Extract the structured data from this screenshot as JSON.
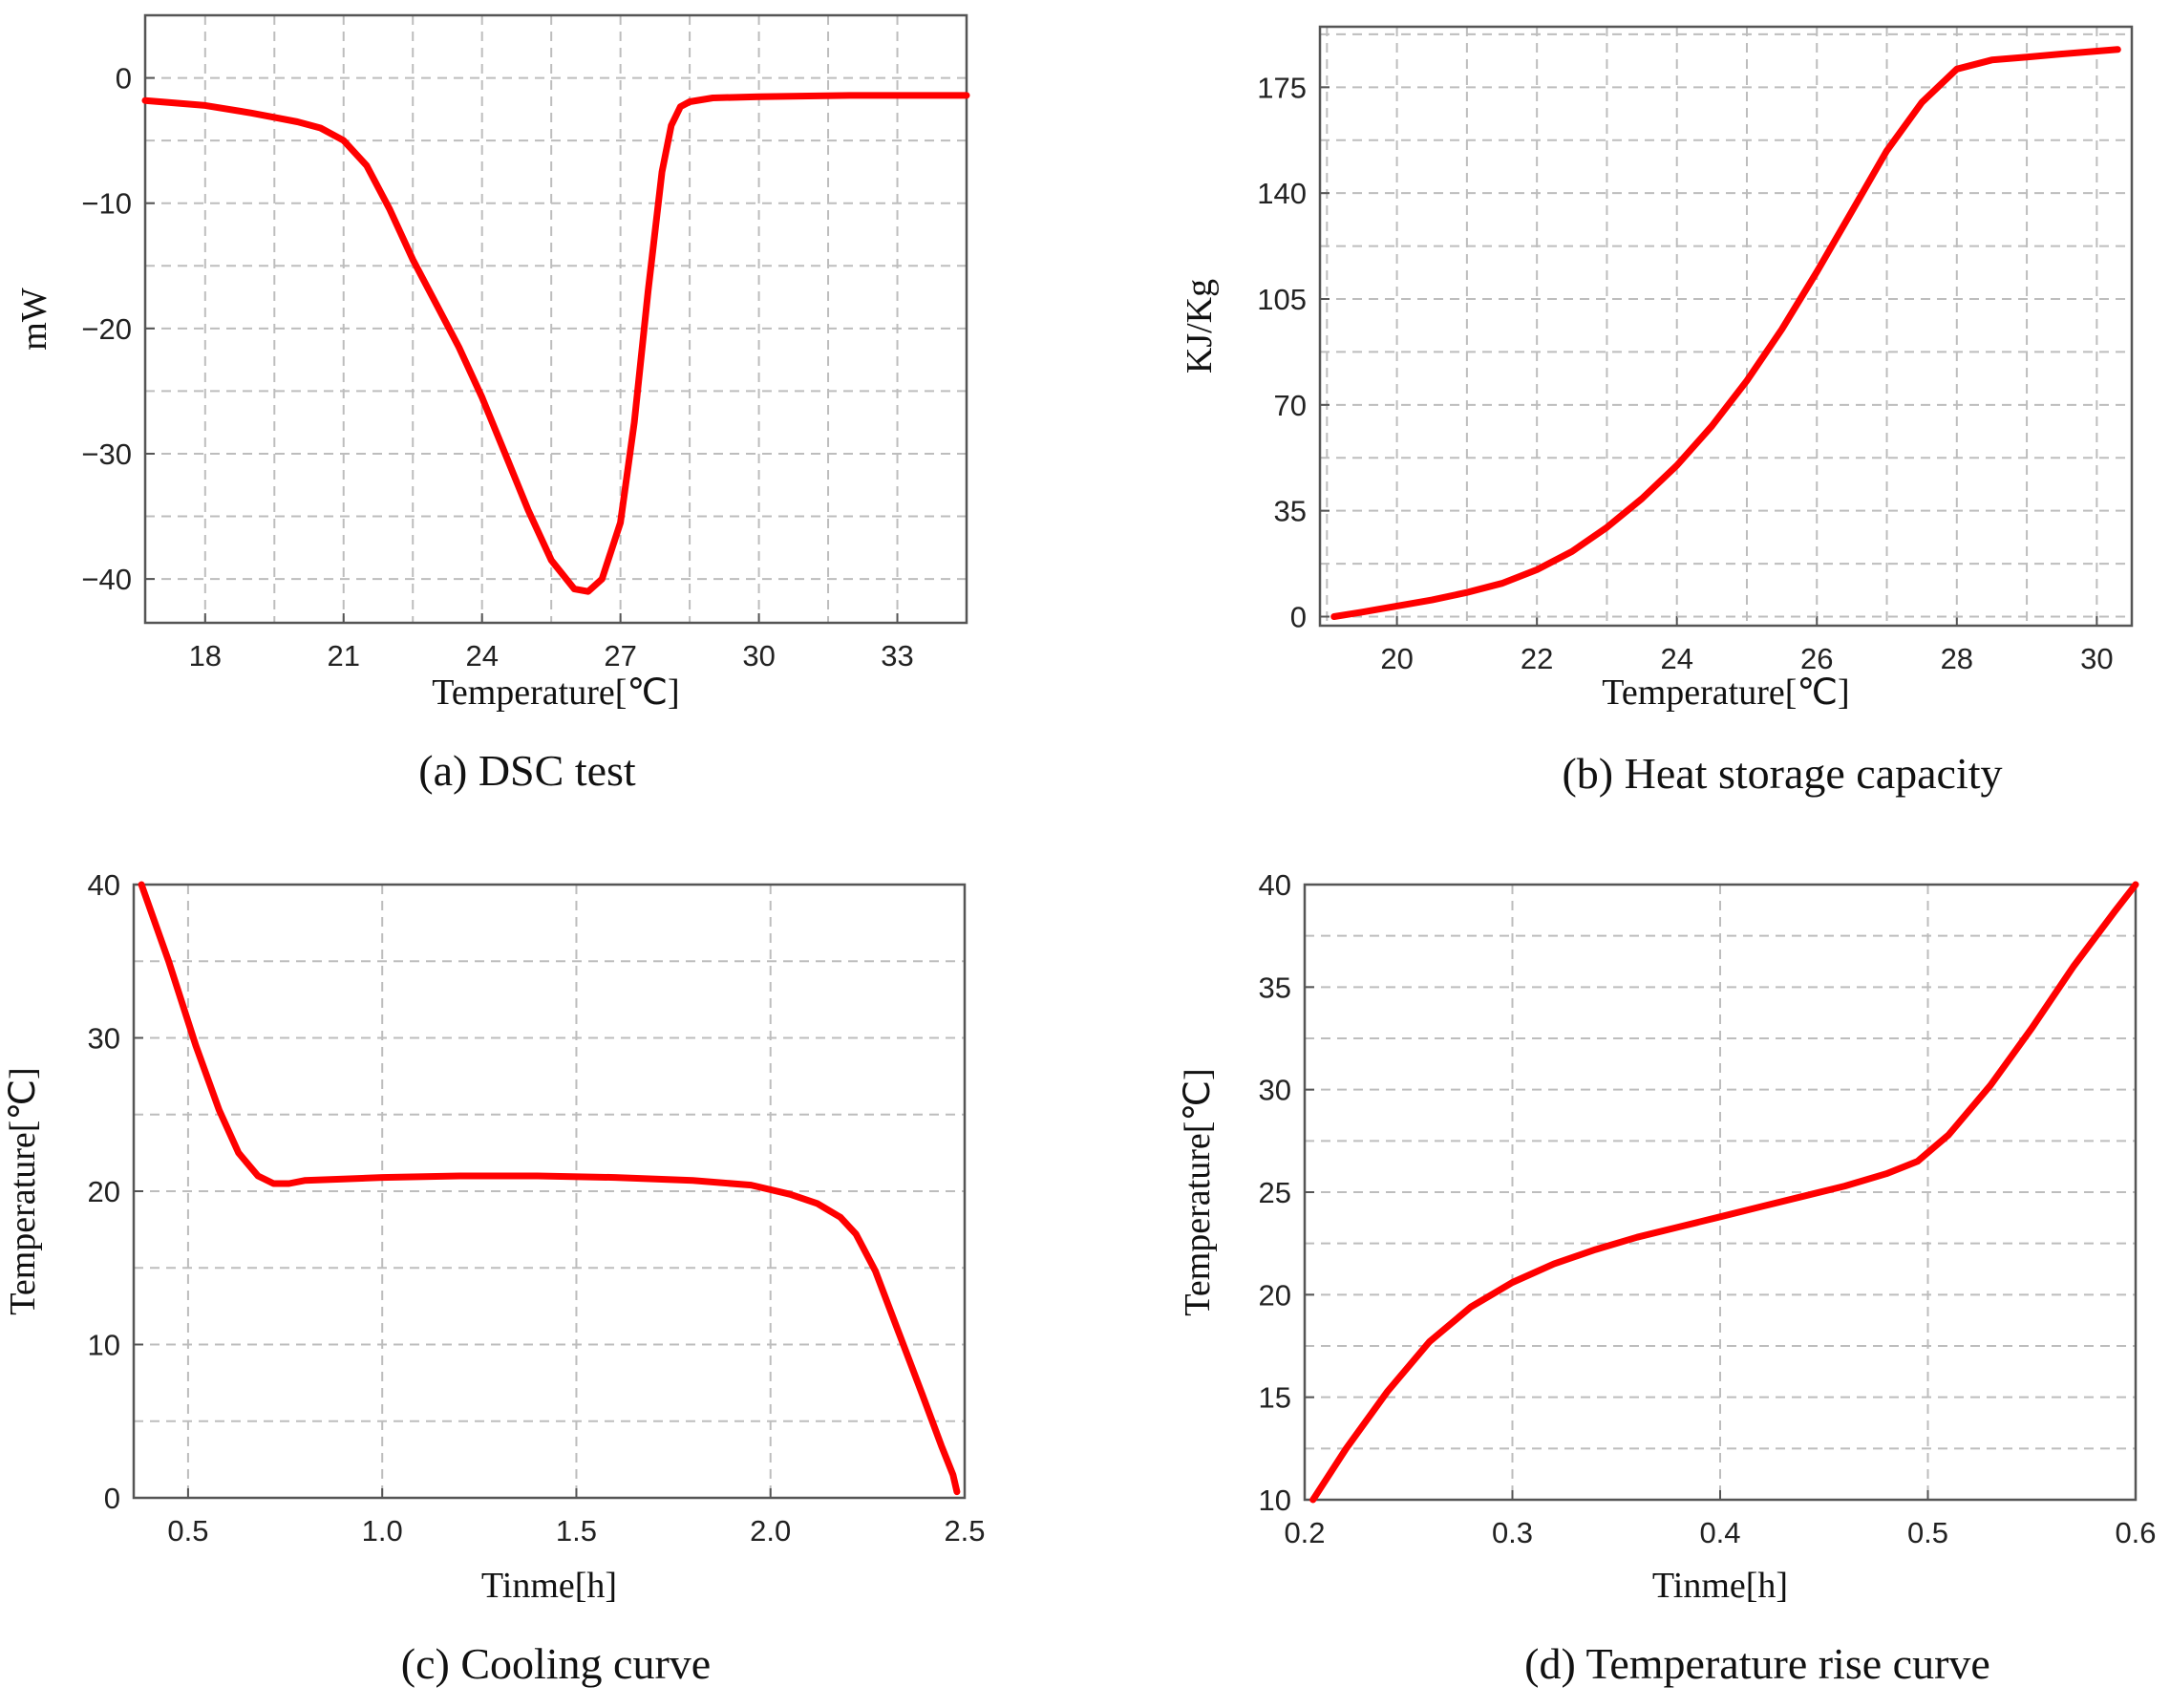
{
  "chart_data": [
    {
      "id": "a",
      "type": "line",
      "caption": "(a)  DSC test",
      "xlabel": "Temperature[℃]",
      "ylabel": "mW",
      "xlim": [
        16.7,
        34.5
      ],
      "ylim": [
        -43.5,
        5
      ],
      "xticks": [
        18,
        21,
        24,
        27,
        30,
        33
      ],
      "xtick_labels": [
        "18",
        "21",
        "24",
        "27",
        "30",
        "33"
      ],
      "yticks": [
        0,
        -10,
        -20,
        -30,
        -40
      ],
      "ytick_labels": [
        "0",
        "−10",
        "−20",
        "−30",
        "−40"
      ],
      "grid": true,
      "series": [
        {
          "name": "DSC",
          "color": "#ff0000",
          "x": [
            16.7,
            18,
            19,
            20,
            20.5,
            21,
            21.5,
            22,
            22.5,
            23,
            23.5,
            24,
            24.5,
            25,
            25.5,
            26,
            26.3,
            26.6,
            27,
            27.3,
            27.6,
            27.9,
            28.1,
            28.3,
            28.5,
            29,
            30,
            32,
            34.5
          ],
          "y": [
            -1.8,
            -2.2,
            -2.8,
            -3.5,
            -4.0,
            -5.0,
            -7.0,
            -10.5,
            -14.5,
            -18.0,
            -21.5,
            -25.5,
            -30.0,
            -34.5,
            -38.5,
            -40.8,
            -41.0,
            -40.0,
            -35.5,
            -27.5,
            -17.0,
            -7.5,
            -3.8,
            -2.3,
            -1.9,
            -1.6,
            -1.5,
            -1.4,
            -1.4
          ]
        }
      ]
    },
    {
      "id": "b",
      "type": "line",
      "caption": "(b)  Heat storage capacity",
      "xlabel": "Temperature[℃]",
      "ylabel": "KJ/Kg",
      "xlim": [
        18.9,
        30.5
      ],
      "ylim": [
        -3,
        195
      ],
      "xticks": [
        20,
        22,
        24,
        26,
        28,
        30
      ],
      "xtick_labels": [
        "20",
        "22",
        "24",
        "26",
        "28",
        "30"
      ],
      "yticks": [
        0,
        35,
        70,
        105,
        140,
        175
      ],
      "ytick_labels": [
        "0",
        "35",
        "70",
        "105",
        "140",
        "175"
      ],
      "grid": true,
      "series": [
        {
          "name": "Heat storage capacity",
          "color": "#ff0000",
          "x": [
            19.1,
            19.5,
            20,
            20.5,
            21,
            21.5,
            22,
            22.5,
            23,
            23.5,
            24,
            24.5,
            25,
            25.5,
            26,
            26.5,
            27,
            27.5,
            28,
            28.5,
            29,
            29.5,
            30.3
          ],
          "y": [
            0,
            1.5,
            3.5,
            5.5,
            8,
            11,
            15.5,
            21.5,
            29.5,
            39,
            50,
            63,
            78,
            95,
            114,
            134,
            154,
            170,
            181,
            184,
            185,
            186,
            187.5
          ]
        }
      ]
    },
    {
      "id": "c",
      "type": "line",
      "caption": "(c)  Cooling curve",
      "xlabel": "Tinme[h]",
      "ylabel": "Temperature[℃]",
      "xlim": [
        0.36,
        2.5
      ],
      "ylim": [
        0,
        40
      ],
      "xticks": [
        0.5,
        1.0,
        1.5,
        2.0,
        2.5
      ],
      "xtick_labels": [
        "0.5",
        "1.0",
        "1.5",
        "2.0",
        "2.5"
      ],
      "yticks": [
        0,
        10,
        20,
        30,
        40
      ],
      "ytick_labels": [
        "0",
        "10",
        "20",
        "30",
        "40"
      ],
      "grid": true,
      "series": [
        {
          "name": "Cooling",
          "color": "#ff0000",
          "x": [
            0.38,
            0.45,
            0.52,
            0.58,
            0.63,
            0.68,
            0.72,
            0.76,
            0.8,
            0.9,
            1.0,
            1.2,
            1.4,
            1.6,
            1.8,
            1.95,
            2.05,
            2.12,
            2.18,
            2.22,
            2.27,
            2.33,
            2.39,
            2.44,
            2.47,
            2.48
          ],
          "y": [
            40,
            35,
            29.5,
            25.3,
            22.5,
            21.0,
            20.5,
            20.5,
            20.7,
            20.8,
            20.9,
            21.0,
            21.0,
            20.9,
            20.7,
            20.4,
            19.8,
            19.2,
            18.3,
            17.2,
            14.8,
            10.8,
            6.8,
            3.4,
            1.5,
            0.4
          ]
        }
      ]
    },
    {
      "id": "d",
      "type": "line",
      "caption": "(d)  Temperature rise curve",
      "xlabel": "Tinme[h]",
      "ylabel": "Temperature[℃]",
      "xlim": [
        0.2,
        0.6
      ],
      "ylim": [
        10,
        40
      ],
      "xticks": [
        0.2,
        0.3,
        0.4,
        0.5,
        0.6
      ],
      "xtick_labels": [
        "0.2",
        "0.3",
        "0.4",
        "0.5",
        "0.6"
      ],
      "yticks": [
        10,
        15,
        20,
        25,
        30,
        35,
        40
      ],
      "ytick_labels": [
        "10",
        "15",
        "20",
        "25",
        "30",
        "35",
        "40"
      ],
      "grid": true,
      "series": [
        {
          "name": "Temperature rise",
          "color": "#ff0000",
          "x": [
            0.204,
            0.22,
            0.24,
            0.26,
            0.28,
            0.3,
            0.32,
            0.34,
            0.36,
            0.38,
            0.4,
            0.42,
            0.44,
            0.46,
            0.48,
            0.495,
            0.51,
            0.53,
            0.55,
            0.57,
            0.59,
            0.6
          ],
          "y": [
            10,
            12.5,
            15.3,
            17.7,
            19.4,
            20.6,
            21.5,
            22.2,
            22.8,
            23.3,
            23.8,
            24.3,
            24.8,
            25.3,
            25.9,
            26.5,
            27.8,
            30.2,
            33.0,
            36.0,
            38.7,
            40.0
          ]
        }
      ]
    }
  ]
}
